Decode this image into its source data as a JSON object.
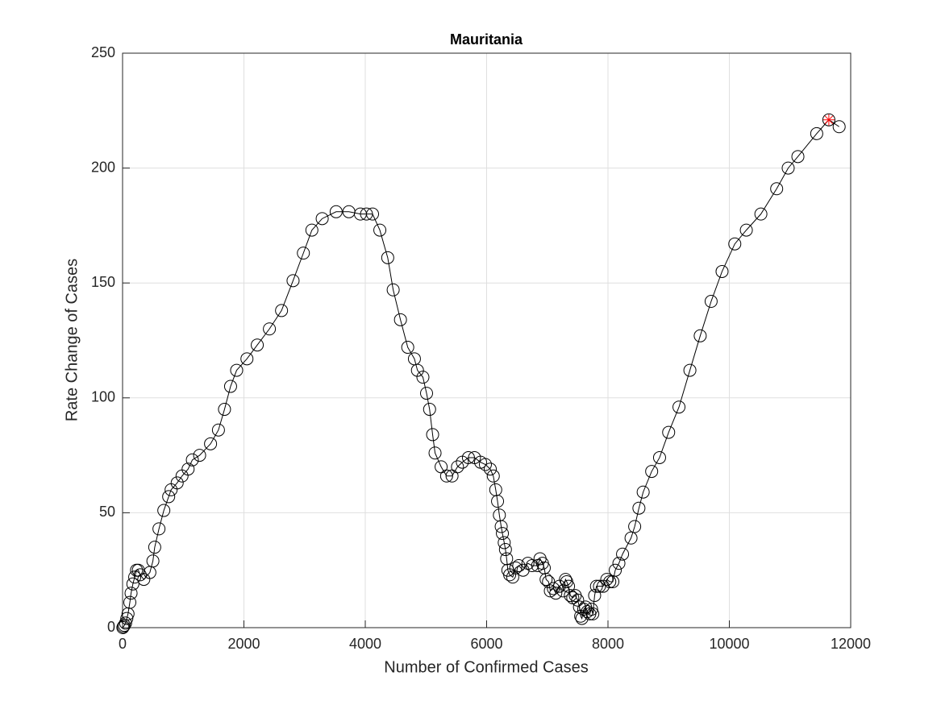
{
  "chart_data": {
    "type": "line",
    "title": "Mauritania",
    "xlabel": "Number of Confirmed Cases",
    "ylabel": "Rate Change of Cases",
    "color": "#000000",
    "marker": "circle",
    "grid": true,
    "x": [
      5,
      15,
      30,
      50,
      70,
      90,
      120,
      140,
      170,
      200,
      230,
      260,
      290,
      350,
      450,
      500,
      530,
      600,
      680,
      760,
      800,
      900,
      980,
      1080,
      1150,
      1270,
      1450,
      1580,
      1680,
      1780,
      1880,
      2050,
      2220,
      2420,
      2620,
      2810,
      2980,
      3120,
      3290,
      3520,
      3730,
      3920,
      4020,
      4120,
      4240,
      4370,
      4460,
      4580,
      4700,
      4810,
      4860,
      4950,
      5010,
      5060,
      5110,
      5150,
      5250,
      5340,
      5430,
      5520,
      5600,
      5700,
      5800,
      5900,
      5980,
      6060,
      6110,
      6150,
      6180,
      6210,
      6240,
      6260,
      6290,
      6310,
      6330,
      6350,
      6380,
      6430,
      6480,
      6530,
      6600,
      6680,
      6750,
      6840,
      6880,
      6920,
      6950,
      6980,
      7020,
      7050,
      7100,
      7140,
      7200,
      7260,
      7300,
      7320,
      7350,
      7380,
      7420,
      7460,
      7500,
      7530,
      7550,
      7570,
      7600,
      7630,
      7660,
      7700,
      7730,
      7750,
      7780,
      7810,
      7860,
      7920,
      7980,
      8030,
      8080,
      8120,
      8180,
      8240,
      8380,
      8440,
      8510,
      8580,
      8720,
      8850,
      9000,
      9170,
      9350,
      9520,
      9700,
      9880,
      10090,
      10280,
      10520,
      10780,
      10970,
      11130,
      11440,
      11640,
      11810
    ],
    "values": [
      0,
      0.5,
      1,
      2,
      4,
      6,
      11,
      15,
      19,
      22,
      25,
      25,
      23,
      21,
      24,
      29,
      35,
      43,
      51,
      57,
      60,
      63,
      66,
      69,
      73,
      75,
      80,
      86,
      95,
      105,
      112,
      117,
      123,
      130,
      138,
      151,
      163,
      173,
      178,
      181,
      181,
      180,
      180,
      180,
      173,
      161,
      147,
      134,
      122,
      117,
      112,
      109,
      102,
      95,
      84,
      76,
      70,
      66,
      66,
      70,
      72,
      74,
      74,
      72,
      71,
      69,
      66,
      60,
      55,
      49,
      44,
      41,
      37,
      34,
      30,
      25,
      23,
      22,
      26,
      27,
      25,
      28,
      27,
      27,
      30,
      28,
      26,
      21,
      20,
      16,
      17,
      15,
      18,
      16,
      21,
      20,
      18,
      14,
      13,
      14,
      12,
      9,
      5,
      4,
      8,
      9,
      7,
      6,
      8,
      6,
      14,
      18,
      18,
      18,
      21,
      20,
      20,
      25,
      28,
      32,
      39,
      44,
      52,
      59,
      68,
      74,
      85,
      96,
      112,
      127,
      142,
      155,
      167,
      173,
      180,
      191,
      200,
      205,
      215,
      221,
      218
    ],
    "highlight": {
      "x": 11640,
      "y": 221,
      "color": "#ff0000",
      "marker": "asterisk"
    },
    "xlim": [
      0,
      12000
    ],
    "xticks": [
      0,
      2000,
      4000,
      6000,
      8000,
      10000,
      12000
    ],
    "ylim": [
      0,
      250
    ],
    "yticks": [
      0,
      50,
      100,
      150,
      200,
      250
    ]
  }
}
